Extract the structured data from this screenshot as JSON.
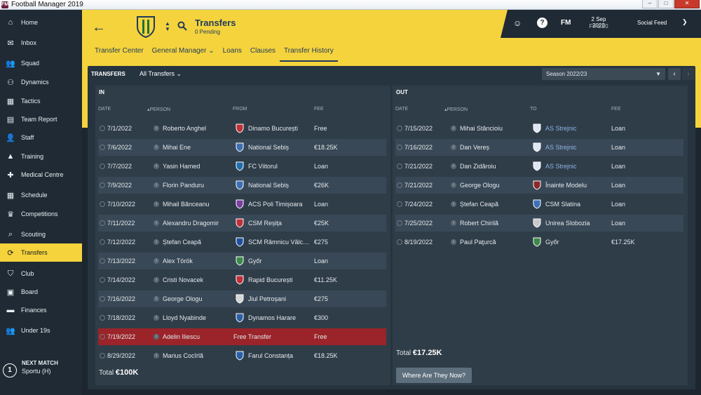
{
  "window": {
    "title": "Football Manager 2019",
    "app_icon_glyph": "FM",
    "controls": [
      "–",
      "□",
      "✕"
    ]
  },
  "sidebar": {
    "items": [
      {
        "label": "Home",
        "icon": "home-icon",
        "glyph": "⌂"
      },
      {
        "label": "Inbox",
        "icon": "inbox-icon",
        "glyph": "✉"
      },
      {
        "label": "Squad",
        "icon": "squad-icon",
        "glyph": "👥"
      },
      {
        "label": "Dynamics",
        "icon": "dynamics-icon",
        "glyph": "⚇"
      },
      {
        "label": "Tactics",
        "icon": "tactics-icon",
        "glyph": "▦"
      },
      {
        "label": "Team Report",
        "icon": "team-report-icon",
        "glyph": "▤"
      },
      {
        "label": "Staff",
        "icon": "staff-icon",
        "glyph": "👤"
      },
      {
        "label": "Training",
        "icon": "training-icon",
        "glyph": "▲"
      },
      {
        "label": "Medical Centre",
        "icon": "medical-icon",
        "glyph": "✚"
      },
      {
        "label": "Schedule",
        "icon": "schedule-icon",
        "glyph": "▦"
      },
      {
        "label": "Competitions",
        "icon": "trophy-icon",
        "glyph": "♛"
      },
      {
        "label": "Scouting",
        "icon": "search-icon",
        "glyph": "⌕"
      },
      {
        "label": "Transfers",
        "icon": "transfers-icon",
        "glyph": "⟳",
        "active": true
      },
      {
        "label": "Club",
        "icon": "club-icon",
        "glyph": "⛉"
      },
      {
        "label": "Board",
        "icon": "board-icon",
        "glyph": "▣"
      },
      {
        "label": "Finances",
        "icon": "finances-icon",
        "glyph": "▬"
      },
      {
        "label": "Under 19s",
        "icon": "under19-icon",
        "glyph": "👥"
      }
    ],
    "next_match": {
      "label": "NEXT MATCH",
      "team": "Sportu (H)",
      "badge": "1"
    }
  },
  "header": {
    "title": "Transfers",
    "subtitle": "0 Pending",
    "tabs": [
      {
        "label": "Transfer Center"
      },
      {
        "label": "General Manager",
        "dropdown": true
      },
      {
        "label": "Loans"
      },
      {
        "label": "Clauses"
      },
      {
        "label": "Transfer History",
        "active": true
      }
    ],
    "right": {
      "fm_label": "FM",
      "date": "2 Sep 2022",
      "time": "Fri 0:00",
      "social": "Social Feed",
      "help_glyph": "?"
    },
    "colors": {
      "accent": "#f4d33d",
      "navy": "#1f3a5a"
    }
  },
  "panel": {
    "label": "TRANSFERS",
    "filter": "All Transfers",
    "season": "Season 2022/23"
  },
  "in": {
    "title": "IN",
    "headers": {
      "date": "DATE",
      "person": "PERSON",
      "club": "FROM",
      "fee": "FEE"
    },
    "rows": [
      {
        "date": "7/1/2022",
        "person": "Roberto Anghel",
        "club": "Dinamo București",
        "fee": "Free"
      },
      {
        "date": "7/6/2022",
        "person": "Mihai Ene",
        "club": "National Sebiș",
        "fee": "€18.25K"
      },
      {
        "date": "7/7/2022",
        "person": "Yasin Hamed",
        "club": "FC Viitorul",
        "fee": "Loan"
      },
      {
        "date": "7/9/2022",
        "person": "Florin Panduru",
        "club": "National Sebiș",
        "fee": "€26K"
      },
      {
        "date": "7/10/2022",
        "person": "Mihail Bănceanu",
        "club": "ACS Poli Timișoara",
        "fee": "Loan"
      },
      {
        "date": "7/11/2022",
        "person": "Alexandru Dragomir",
        "club": "CSM Reșița",
        "fee": "€25K"
      },
      {
        "date": "7/12/2022",
        "person": "Ștefan Ceapă",
        "club": "SCM Râmnicu Vâlc…",
        "fee": "€275"
      },
      {
        "date": "7/13/2022",
        "person": "Alex Török",
        "club": "Győr",
        "fee": "Loan"
      },
      {
        "date": "7/14/2022",
        "person": "Cristi Novacek",
        "club": "Rapid București",
        "fee": "€11.25K"
      },
      {
        "date": "7/16/2022",
        "person": "George Ologu",
        "club": "Jiul Petroșani",
        "fee": "€275"
      },
      {
        "date": "7/18/2022",
        "person": "Lloyd Nyabinde",
        "club": "Dynamos Harare",
        "fee": "€300"
      },
      {
        "date": "7/19/2022",
        "person": "Adelin Iliescu",
        "club": "Free Transfer",
        "fee": "Free",
        "highlight": true
      },
      {
        "date": "8/29/2022",
        "person": "Marius Cocîrlă",
        "club": "Farul Constanța",
        "fee": "€18.25K"
      }
    ],
    "crest_colors": [
      "#c0303a",
      "#3c6fb5",
      "#1f6fb0",
      "#3c6fb5",
      "#7b3fa0",
      "#c0303a",
      "#1f4fa0",
      "#3c8a4a",
      "#c0303a",
      "#d6d6d6",
      "#2a5fa8",
      "",
      "#2a5fa8"
    ],
    "total_label": "Total",
    "total_value": "€100K"
  },
  "out": {
    "title": "OUT",
    "headers": {
      "date": "DATE",
      "person": "PERSON",
      "club": "TO",
      "fee": "FEE"
    },
    "rows": [
      {
        "date": "7/15/2022",
        "person": "Mihai Stăncioiu",
        "club": "AS Strejnic",
        "fee": "Loan",
        "link": true
      },
      {
        "date": "7/16/2022",
        "person": "Dan Vereș",
        "club": "AS Strejnic",
        "fee": "Loan",
        "link": true
      },
      {
        "date": "7/21/2022",
        "person": "Dan Zidăroiu",
        "club": "AS Strejnic",
        "fee": "Loan",
        "link": true
      },
      {
        "date": "7/21/2022",
        "person": "George Ologu",
        "club": "Înainte Modelu",
        "fee": "Loan"
      },
      {
        "date": "7/24/2022",
        "person": "Ștefan Ceapă",
        "club": "CSM Slatina",
        "fee": "Loan"
      },
      {
        "date": "7/25/2022",
        "person": "Robert Chirilă",
        "club": "Unirea Slobozia",
        "fee": "Loan"
      },
      {
        "date": "8/19/2022",
        "person": "Paul Paţurcă",
        "club": "Győr",
        "fee": "€17.25K"
      }
    ],
    "crest_colors": [
      "#dfe7f2",
      "#dfe7f2",
      "#dfe7f2",
      "#8a2a2a",
      "#3c6fb5",
      "#c9c9c9",
      "#3c8a4a"
    ],
    "total_label": "Total",
    "total_value": "€17.25K",
    "where_button": "Where Are They Now?"
  }
}
